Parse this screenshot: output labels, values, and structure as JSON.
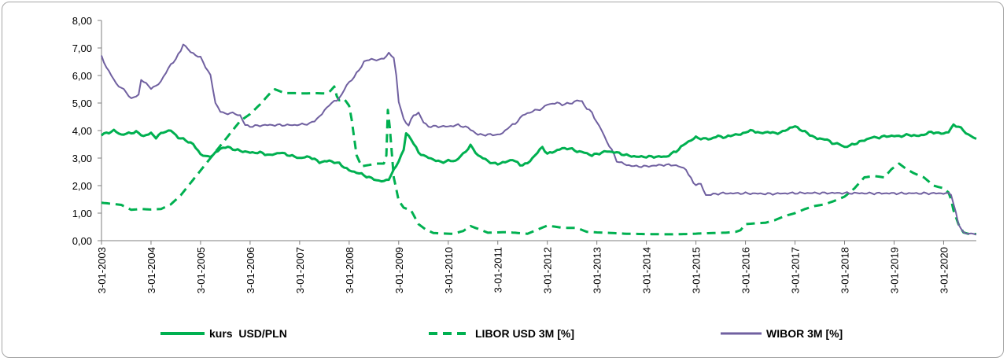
{
  "chart_data": {
    "type": "line",
    "title": "",
    "xlabel": "",
    "ylabel": "",
    "ylim": [
      0,
      8
    ],
    "y_ticks": [
      "0,00",
      "1,00",
      "2,00",
      "3,00",
      "4,00",
      "5,00",
      "6,00",
      "7,00",
      "8,00"
    ],
    "x_ticks": [
      "3-01-2003",
      "3-01-2004",
      "3-01-2005",
      "3-01-2006",
      "3-01-2007",
      "3-01-2008",
      "3-01-2009",
      "3-01-2010",
      "3-01-2011",
      "3-01-2012",
      "3-01-2013",
      "3-01-2014",
      "3-01-2015",
      "3-01-2016",
      "3-01-2017",
      "3-01-2018",
      "3-01-2019",
      "3-01-2020"
    ],
    "xlim": [
      2003.0,
      2020.66
    ],
    "legend_position": "bottom",
    "grid": false,
    "series": [
      {
        "name": "kurs  USD/PLN",
        "color": "#00b050",
        "style": "solid",
        "x": [
          2003.0,
          2003.1,
          2003.25,
          2003.4,
          2003.55,
          2003.7,
          2003.85,
          2004.0,
          2004.1,
          2004.25,
          2004.4,
          2004.55,
          2004.7,
          2004.85,
          2005.0,
          2005.1,
          2005.25,
          2005.4,
          2005.55,
          2005.7,
          2005.85,
          2006.0,
          2006.2,
          2006.4,
          2006.6,
          2006.8,
          2007.0,
          2007.2,
          2007.4,
          2007.6,
          2007.8,
          2008.0,
          2008.2,
          2008.4,
          2008.55,
          2008.7,
          2008.8,
          2008.9,
          2009.0,
          2009.1,
          2009.15,
          2009.25,
          2009.4,
          2009.55,
          2009.7,
          2009.85,
          2010.0,
          2010.15,
          2010.3,
          2010.45,
          2010.6,
          2010.75,
          2010.9,
          2011.0,
          2011.15,
          2011.3,
          2011.45,
          2011.6,
          2011.75,
          2011.9,
          2012.0,
          2012.15,
          2012.3,
          2012.45,
          2012.6,
          2012.75,
          2012.9,
          2013.0,
          2013.2,
          2013.4,
          2013.6,
          2013.8,
          2014.0,
          2014.2,
          2014.4,
          2014.6,
          2014.8,
          2015.0,
          2015.15,
          2015.3,
          2015.45,
          2015.6,
          2015.75,
          2015.9,
          2016.0,
          2016.15,
          2016.3,
          2016.45,
          2016.6,
          2016.75,
          2016.9,
          2017.0,
          2017.15,
          2017.3,
          2017.45,
          2017.6,
          2017.75,
          2017.9,
          2018.0,
          2018.1,
          2018.25,
          2018.4,
          2018.55,
          2018.7,
          2018.85,
          2019.0,
          2019.15,
          2019.3,
          2019.45,
          2019.6,
          2019.75,
          2019.9,
          2020.0,
          2020.1,
          2020.2,
          2020.3,
          2020.4,
          2020.5,
          2020.6,
          2020.66
        ],
        "values": [
          3.85,
          3.9,
          4.0,
          3.85,
          3.9,
          3.95,
          3.8,
          3.9,
          3.75,
          3.95,
          4.0,
          3.75,
          3.65,
          3.5,
          3.15,
          3.05,
          3.1,
          3.35,
          3.4,
          3.3,
          3.25,
          3.2,
          3.2,
          3.1,
          3.2,
          3.1,
          3.0,
          3.05,
          2.85,
          2.9,
          2.8,
          2.55,
          2.45,
          2.3,
          2.2,
          2.15,
          2.25,
          2.55,
          2.9,
          3.3,
          3.9,
          3.7,
          3.2,
          3.05,
          2.95,
          2.85,
          2.9,
          2.9,
          3.15,
          3.45,
          3.1,
          2.95,
          2.8,
          2.8,
          2.85,
          2.95,
          2.75,
          2.8,
          3.1,
          3.4,
          3.15,
          3.25,
          3.35,
          3.35,
          3.25,
          3.2,
          3.1,
          3.15,
          3.25,
          3.2,
          3.1,
          3.05,
          3.05,
          3.05,
          3.05,
          3.25,
          3.55,
          3.75,
          3.7,
          3.7,
          3.8,
          3.75,
          3.85,
          3.85,
          3.95,
          4.0,
          3.9,
          3.95,
          3.9,
          3.95,
          4.1,
          4.15,
          4.0,
          3.85,
          3.7,
          3.7,
          3.55,
          3.5,
          3.4,
          3.45,
          3.55,
          3.65,
          3.75,
          3.75,
          3.8,
          3.8,
          3.8,
          3.85,
          3.8,
          3.85,
          3.95,
          3.9,
          3.9,
          3.95,
          4.2,
          4.15,
          4.0,
          3.85,
          3.75,
          3.7
        ],
        "legend_dash": false
      },
      {
        "name": "LIBOR USD 3M [%]",
        "color": "#00b050",
        "style": "dashed",
        "x": [
          2003.0,
          2003.2,
          2003.4,
          2003.6,
          2003.8,
          2004.0,
          2004.2,
          2004.4,
          2004.6,
          2004.8,
          2005.0,
          2005.2,
          2005.4,
          2005.6,
          2005.8,
          2006.0,
          2006.2,
          2006.4,
          2006.5,
          2006.7,
          2006.9,
          2007.1,
          2007.3,
          2007.5,
          2007.6,
          2007.7,
          2007.75,
          2007.8,
          2007.9,
          2008.0,
          2008.05,
          2008.15,
          2008.25,
          2008.4,
          2008.55,
          2008.7,
          2008.75,
          2008.78,
          2008.82,
          2008.9,
          2009.0,
          2009.1,
          2009.25,
          2009.4,
          2009.55,
          2009.7,
          2009.9,
          2010.1,
          2010.3,
          2010.45,
          2010.6,
          2010.8,
          2011.0,
          2011.2,
          2011.4,
          2011.6,
          2011.8,
          2012.0,
          2012.3,
          2012.6,
          2012.8,
          2013.0,
          2013.3,
          2013.6,
          2014.0,
          2014.4,
          2014.8,
          2015.2,
          2015.6,
          2015.8,
          2015.9,
          2016.0,
          2016.2,
          2016.4,
          2016.6,
          2016.8,
          2017.0,
          2017.2,
          2017.4,
          2017.6,
          2017.8,
          2018.0,
          2018.1,
          2018.2,
          2018.4,
          2018.6,
          2018.8,
          2018.95,
          2019.1,
          2019.25,
          2019.4,
          2019.6,
          2019.8,
          2020.0,
          2020.1,
          2020.15,
          2020.2,
          2020.3,
          2020.4,
          2020.5,
          2020.66
        ],
        "values": [
          1.38,
          1.34,
          1.3,
          1.12,
          1.15,
          1.13,
          1.15,
          1.32,
          1.65,
          2.1,
          2.55,
          3.0,
          3.45,
          3.9,
          4.35,
          4.6,
          4.95,
          5.35,
          5.5,
          5.36,
          5.36,
          5.35,
          5.36,
          5.35,
          5.4,
          5.6,
          5.25,
          5.1,
          5.15,
          4.9,
          4.4,
          3.1,
          2.7,
          2.75,
          2.8,
          2.8,
          3.1,
          4.75,
          4.1,
          2.3,
          1.45,
          1.2,
          1.1,
          0.6,
          0.4,
          0.28,
          0.26,
          0.25,
          0.35,
          0.53,
          0.43,
          0.29,
          0.3,
          0.31,
          0.28,
          0.25,
          0.4,
          0.55,
          0.47,
          0.46,
          0.32,
          0.3,
          0.28,
          0.25,
          0.24,
          0.23,
          0.24,
          0.27,
          0.29,
          0.32,
          0.38,
          0.6,
          0.63,
          0.65,
          0.75,
          0.9,
          1.0,
          1.15,
          1.26,
          1.32,
          1.45,
          1.6,
          1.75,
          1.9,
          2.3,
          2.35,
          2.3,
          2.6,
          2.8,
          2.6,
          2.45,
          2.3,
          2.0,
          1.9,
          1.75,
          1.5,
          1.1,
          0.6,
          0.3,
          0.25,
          0.24
        ]
      },
      {
        "name": "WIBOR 3M [%]",
        "color": "#7060a0",
        "style": "solid",
        "x": [
          2003.0,
          2003.1,
          2003.2,
          2003.3,
          2003.4,
          2003.5,
          2003.6,
          2003.75,
          2003.8,
          2003.9,
          2004.0,
          2004.1,
          2004.2,
          2004.3,
          2004.4,
          2004.5,
          2004.6,
          2004.65,
          2004.7,
          2004.8,
          2005.0,
          2005.2,
          2005.3,
          2005.4,
          2005.5,
          2005.6,
          2005.8,
          2005.9,
          2006.0,
          2006.3,
          2006.6,
          2006.9,
          2007.2,
          2007.3,
          2007.45,
          2007.6,
          2007.75,
          2007.85,
          2007.95,
          2008.0,
          2008.1,
          2008.2,
          2008.3,
          2008.45,
          2008.6,
          2008.75,
          2008.8,
          2008.9,
          2008.95,
          2009.0,
          2009.1,
          2009.2,
          2009.3,
          2009.4,
          2009.5,
          2009.6,
          2009.8,
          2010.0,
          2010.2,
          2010.4,
          2010.6,
          2010.8,
          2011.0,
          2011.1,
          2011.2,
          2011.35,
          2011.5,
          2011.7,
          2011.9,
          2012.0,
          2012.2,
          2012.3,
          2012.5,
          2012.6,
          2012.7,
          2012.8,
          2012.9,
          2013.0,
          2013.1,
          2013.2,
          2013.3,
          2013.4,
          2013.6,
          2013.8,
          2014.0,
          2014.3,
          2014.55,
          2014.65,
          2014.8,
          2014.85,
          2014.95,
          2015.0,
          2015.1,
          2015.2,
          2015.5,
          2016.0,
          2016.5,
          2017.0,
          2017.5,
          2018.0,
          2018.5,
          2019.0,
          2019.5,
          2020.0,
          2020.15,
          2020.2,
          2020.3,
          2020.4,
          2020.5,
          2020.66
        ],
        "values": [
          6.7,
          6.3,
          6.0,
          5.7,
          5.55,
          5.4,
          5.15,
          5.3,
          5.85,
          5.7,
          5.55,
          5.6,
          5.8,
          6.1,
          6.4,
          6.6,
          6.9,
          7.15,
          7.05,
          6.85,
          6.65,
          6.0,
          5.0,
          4.7,
          4.6,
          4.65,
          4.55,
          4.2,
          4.15,
          4.2,
          4.2,
          4.2,
          4.25,
          4.35,
          4.6,
          4.95,
          5.1,
          5.3,
          5.65,
          5.75,
          5.95,
          6.2,
          6.5,
          6.6,
          6.55,
          6.7,
          6.8,
          6.65,
          6.0,
          5.05,
          4.4,
          4.2,
          4.55,
          4.65,
          4.3,
          4.15,
          4.15,
          4.15,
          4.2,
          4.1,
          3.85,
          3.85,
          3.85,
          3.9,
          4.1,
          4.25,
          4.55,
          4.7,
          4.8,
          4.95,
          5.0,
          4.95,
          5.0,
          5.1,
          5.05,
          4.8,
          4.65,
          4.3,
          4.0,
          3.6,
          3.3,
          2.9,
          2.75,
          2.7,
          2.7,
          2.75,
          2.75,
          2.7,
          2.6,
          2.4,
          2.1,
          2.05,
          2.05,
          1.65,
          1.72,
          1.72,
          1.7,
          1.73,
          1.73,
          1.73,
          1.72,
          1.72,
          1.72,
          1.72,
          1.7,
          1.35,
          0.6,
          0.3,
          0.25,
          0.22
        ]
      }
    ]
  }
}
